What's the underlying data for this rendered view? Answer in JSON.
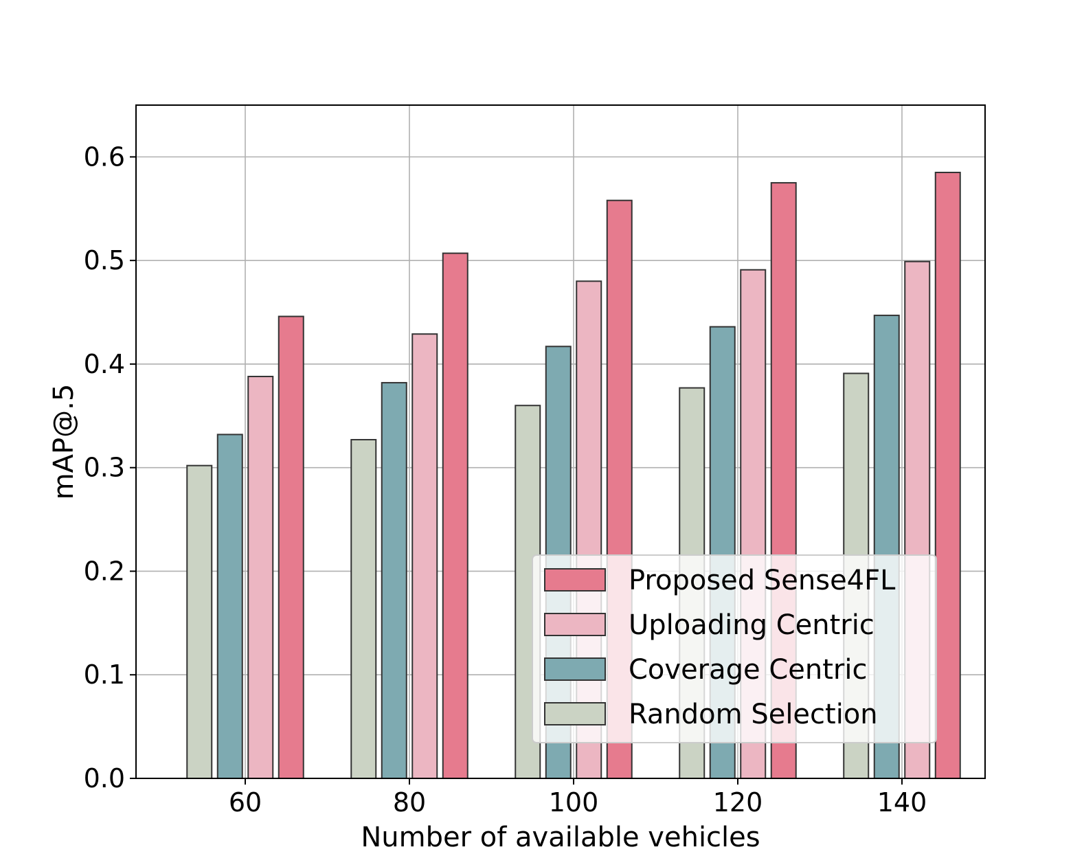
{
  "chart_data": {
    "type": "bar",
    "title": "",
    "xlabel": "Number of available vehicles",
    "ylabel": "mAP@.5",
    "categories": [
      "60",
      "80",
      "100",
      "120",
      "140"
    ],
    "ylim": [
      0,
      0.65
    ],
    "yticks": [
      0.0,
      0.1,
      0.2,
      0.3,
      0.4,
      0.5,
      0.6
    ],
    "ytick_labels": [
      "0.0",
      "0.1",
      "0.2",
      "0.3",
      "0.4",
      "0.5",
      "0.6"
    ],
    "grid": true,
    "legend_position": "bottom-right",
    "series": [
      {
        "name": "Random Selection",
        "color": "#cbd3c4",
        "values": [
          0.302,
          0.327,
          0.36,
          0.377,
          0.391
        ]
      },
      {
        "name": "Coverage Centric",
        "color": "#7eaab1",
        "values": [
          0.332,
          0.382,
          0.417,
          0.436,
          0.447
        ]
      },
      {
        "name": "Uploading Centric",
        "color": "#ecb6c2",
        "values": [
          0.388,
          0.429,
          0.48,
          0.491,
          0.499
        ]
      },
      {
        "name": "Proposed Sense4FL",
        "color": "#e67b8e",
        "values": [
          0.446,
          0.507,
          0.558,
          0.575,
          0.585
        ]
      }
    ],
    "legend_order": [
      "Proposed Sense4FL",
      "Uploading Centric",
      "Coverage Centric",
      "Random Selection"
    ]
  }
}
